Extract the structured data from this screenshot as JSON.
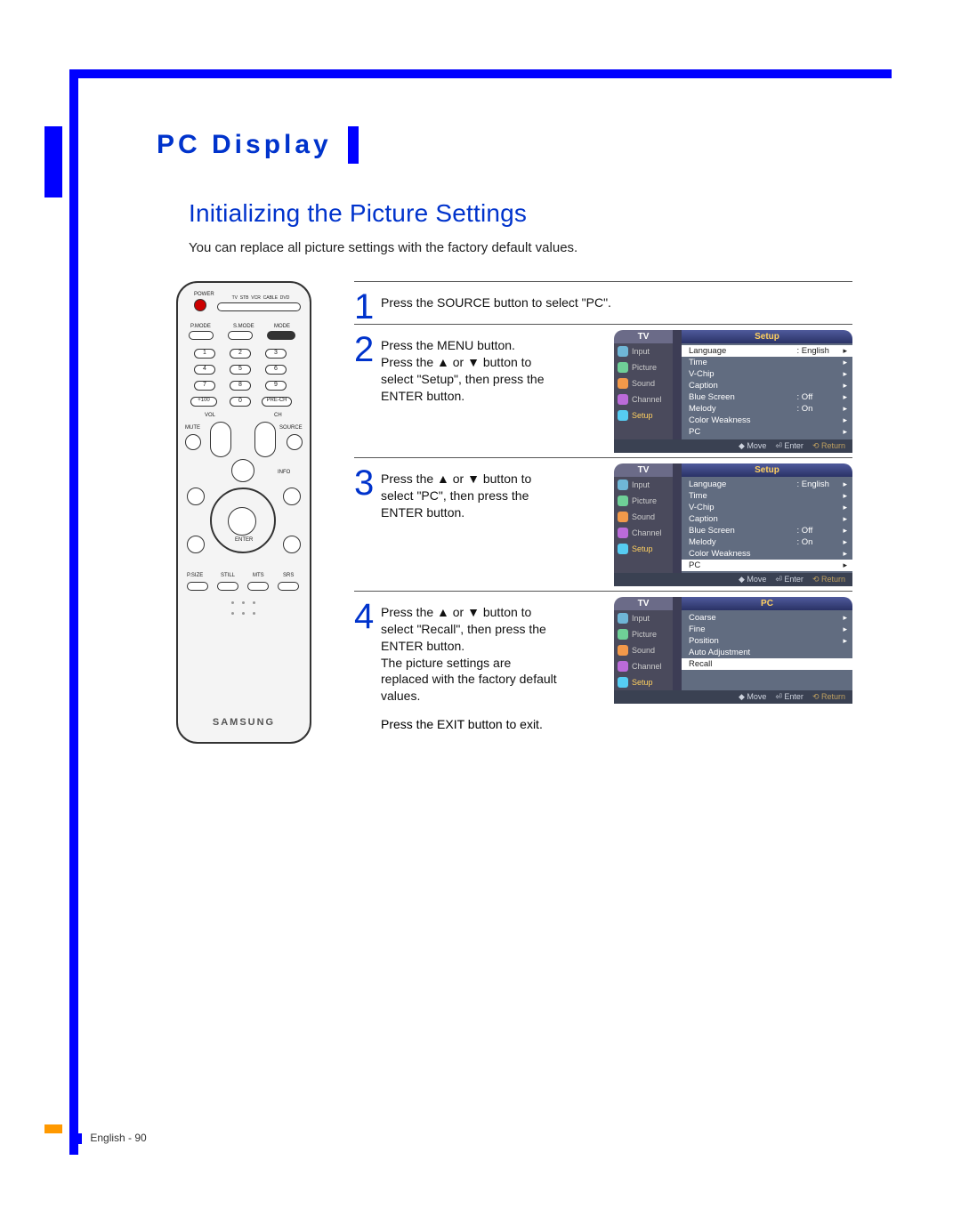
{
  "page": {
    "tab_label": "PC Display",
    "section_title": "Initializing the Picture Settings",
    "section_desc": "You can replace all picture settings with the factory default values.",
    "footer": "English - 90"
  },
  "remote": {
    "power": "POWER",
    "top_labels": [
      "TV",
      "STB",
      "VCR",
      "CABLE",
      "DVD"
    ],
    "row2": [
      "P.MODE",
      "S.MODE",
      "MODE"
    ],
    "numpad": [
      [
        "1",
        "2",
        "3"
      ],
      [
        "4",
        "5",
        "6"
      ],
      [
        "7",
        "8",
        "9"
      ],
      [
        "+100",
        "0",
        "PRE-CH"
      ]
    ],
    "vol": "VOL",
    "ch": "CH",
    "mute": "MUTE",
    "source": "SOURCE",
    "info": "INFO",
    "enter": "ENTER",
    "bottom_labels": [
      "P.SIZE",
      "STILL",
      "MTS",
      "SRS"
    ],
    "brand": "SAMSUNG"
  },
  "steps": [
    {
      "num": "1",
      "text": "Press the SOURCE button to select \"PC\"."
    },
    {
      "num": "2",
      "text": "Press the MENU button.\nPress the ▲ or ▼ button to select \"Setup\", then press the ENTER button."
    },
    {
      "num": "3",
      "text": "Press the ▲ or ▼ button to select \"PC\", then press the ENTER button."
    },
    {
      "num": "4",
      "text": "Press the ▲ or ▼ button to select \"Recall\", then press the ENTER button.\nThe picture settings are replaced with the factory default values.",
      "extra": "Press the EXIT button to exit."
    }
  ],
  "osd_common": {
    "tv": "TV",
    "side": [
      {
        "label": "Input",
        "cls": "ic-input"
      },
      {
        "label": "Picture",
        "cls": "ic-pic"
      },
      {
        "label": "Sound",
        "cls": "ic-snd"
      },
      {
        "label": "Channel",
        "cls": "ic-ch"
      },
      {
        "label": "Setup",
        "cls": "ic-set"
      }
    ],
    "foot_move": "Move",
    "foot_enter": "Enter",
    "foot_return": "Return"
  },
  "osd1": {
    "title": "Setup",
    "rows": [
      {
        "name": "Language",
        "val": ": English",
        "sel": true
      },
      {
        "name": "Time",
        "val": ""
      },
      {
        "name": "V-Chip",
        "val": ""
      },
      {
        "name": "Caption",
        "val": ""
      },
      {
        "name": "Blue Screen",
        "val": ": Off"
      },
      {
        "name": "Melody",
        "val": ": On"
      },
      {
        "name": "Color Weakness",
        "val": ""
      },
      {
        "name": "PC",
        "val": ""
      }
    ],
    "side_sel": 4
  },
  "osd2": {
    "title": "Setup",
    "rows": [
      {
        "name": "Language",
        "val": ": English"
      },
      {
        "name": "Time",
        "val": ""
      },
      {
        "name": "V-Chip",
        "val": ""
      },
      {
        "name": "Caption",
        "val": ""
      },
      {
        "name": "Blue Screen",
        "val": ": Off"
      },
      {
        "name": "Melody",
        "val": ": On"
      },
      {
        "name": "Color Weakness",
        "val": ""
      },
      {
        "name": "PC",
        "val": "",
        "sel": true
      }
    ],
    "side_sel": 4
  },
  "osd3": {
    "title": "PC",
    "rows": [
      {
        "name": "Coarse",
        "val": ""
      },
      {
        "name": "Fine",
        "val": ""
      },
      {
        "name": "Position",
        "val": ""
      },
      {
        "name": "Auto Adjustment",
        "val": "",
        "noarr": true
      },
      {
        "name": "Recall",
        "val": "",
        "sel": true,
        "noarr": true
      }
    ],
    "side_sel": 4
  }
}
